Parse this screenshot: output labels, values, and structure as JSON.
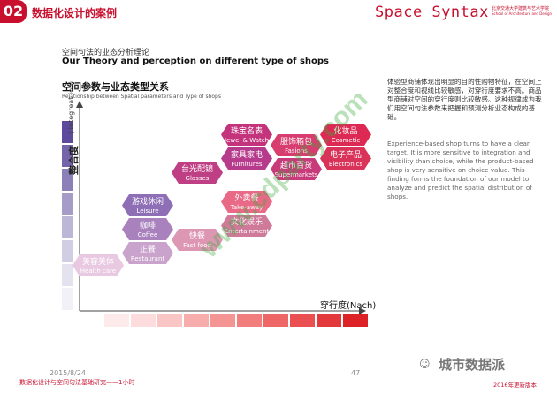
{
  "header": {
    "badge": "02",
    "title": "数据化设计的案例",
    "brand": "Space Syntax",
    "school": "北京交通大学建筑与艺术学院",
    "school_en": "School of Architecture and Design"
  },
  "section": {
    "title_cn": "空间句法的业态分析理论",
    "title_en": "Our Theory and perception on different type of shops"
  },
  "diagram": {
    "title_cn": "空间参数与业态类型关系",
    "title_en": "Relationship between Spatial parameters and Type of shops",
    "y_label_cn": "整合度",
    "y_label_en": "( Integreat ion)",
    "x_label": "穿行度(Nach)",
    "nodes": [
      {
        "cn": "珠宝名表",
        "en": "Jewel & Watch",
        "color": "#c4347c"
      },
      {
        "cn": "服饰箱包",
        "en": "Fasions",
        "color": "#d73d6e"
      },
      {
        "cn": "化妆品",
        "en": "Cosmetic",
        "color": "#dd2a54"
      },
      {
        "cn": "家具家电",
        "en": "Furnitures",
        "color": "#b73b8c"
      },
      {
        "cn": "超市百货",
        "en": "Supermarkets",
        "color": "#c83b7a"
      },
      {
        "cn": "电子产品",
        "en": "Electronics",
        "color": "#d9335a"
      },
      {
        "cn": "台光配镜",
        "en": "Glasses",
        "color": "#bf3f84"
      },
      {
        "cn": "外卖餐",
        "en": "Take-away",
        "color": "#e86a86"
      },
      {
        "cn": "游戏休闲",
        "en": "Leisure",
        "color": "#8e6fb6"
      },
      {
        "cn": "文化娱乐",
        "en": "Entertainment",
        "color": "#d07a9a"
      },
      {
        "cn": "咖啡",
        "en": "Coffee",
        "color": "#a981bd"
      },
      {
        "cn": "快餐",
        "en": "Fast food",
        "color": "#dd97b3"
      },
      {
        "cn": "正餐",
        "en": "Restaurant",
        "color": "#c9a3cc"
      },
      {
        "cn": "美容美体",
        "en": "Health care",
        "color": "#e9c9e1"
      }
    ],
    "y_scale_colors": [
      "#5d4a9c",
      "#7564aa",
      "#8c80b9",
      "#a59cc8",
      "#bcb6d7",
      "#d1cde3",
      "#e4e2ef",
      "#f2f1f7"
    ],
    "x_scale_colors": [
      "#fdeaea",
      "#fcdcdc",
      "#fac6c5",
      "#f7adab",
      "#f59593",
      "#f27d7d",
      "#ef6667",
      "#ea5052",
      "#e3383c",
      "#dc2127"
    ]
  },
  "description": {
    "cn": "体验型商铺体现出明显的目的性购物特征，在空间上对整合度和视线比较敏感，对穿行度要求不高。商品型商铺对空间的穿行度则比较敏感。这种规律成为我们用空间句法参数来把握和预测分析业态构成的基础。",
    "en": "Experience-based shop turns to have a clear target. It is more sensitive to integration and visibility than choice, while the product-based shop is very sensitive on choice value. This finding forms the foundation of our model to analyze and predict the spatial distribution of shops."
  },
  "footer": {
    "date": "2015/8/24",
    "course": "数据化设计与空间句法基础研究——1小时",
    "page": "47",
    "logo": "城市数据派",
    "right": "2016年更新版本"
  },
  "watermark": "www.cdparty.com"
}
